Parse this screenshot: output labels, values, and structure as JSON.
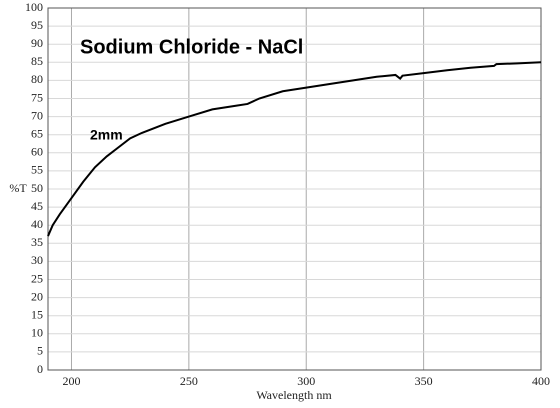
{
  "chart_data": {
    "type": "line",
    "title": "Sodium Chloride - NaCl",
    "annotation": "2mm",
    "x_label": "Wavelength nm",
    "y_label": "%T",
    "x": [
      190,
      192,
      195,
      200,
      205,
      210,
      215,
      220,
      225,
      230,
      240,
      250,
      260,
      270,
      275,
      280,
      290,
      300,
      310,
      320,
      330,
      338,
      340,
      341,
      350,
      360,
      370,
      380,
      381,
      390,
      400
    ],
    "series": [
      {
        "name": "2mm",
        "color": "#000000",
        "values": [
          37,
          40,
          43,
          47.5,
          52,
          56,
          59,
          61.5,
          64,
          65.5,
          68,
          70,
          72,
          73,
          73.5,
          75,
          77,
          78,
          79,
          80,
          81,
          81.5,
          80.5,
          81.3,
          82,
          82.8,
          83.5,
          84,
          84.5,
          84.7,
          85
        ]
      }
    ],
    "xlim": [
      190,
      400
    ],
    "xticks": [
      200,
      250,
      300,
      350,
      400
    ],
    "ylim": [
      0,
      100
    ],
    "yticks": [
      0,
      5,
      10,
      15,
      20,
      25,
      30,
      35,
      40,
      45,
      50,
      55,
      60,
      65,
      70,
      75,
      80,
      85,
      90,
      95,
      100
    ],
    "grid": true
  }
}
